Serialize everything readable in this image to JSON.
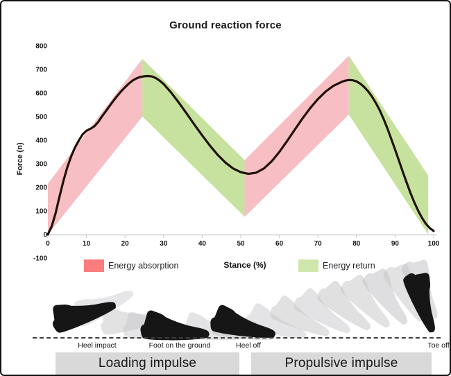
{
  "chart_data": {
    "type": "line",
    "title": "Ground reaction force",
    "xlabel": "Stance (%)",
    "ylabel": "Force (n)",
    "xlim": [
      0,
      100
    ],
    "ylim": [
      -100,
      800
    ],
    "grid": false,
    "x_ticks": [
      0,
      10,
      20,
      30,
      40,
      50,
      60,
      70,
      80,
      90,
      100
    ],
    "y_ticks": [
      800,
      700,
      600,
      500,
      400,
      300,
      200,
      100,
      0,
      -100
    ],
    "colors": {
      "absorption_band": "#f7bec3",
      "return_band": "#c7e29e",
      "curve": "#201109",
      "axis": "#d2d2d2",
      "tick": "#c7c7c7",
      "tick_text": "#141414",
      "legend_absorption": "#f97d7d",
      "legend_return": "#cfe7ad"
    },
    "bands": [
      {
        "name": "energy-absorption-band-1",
        "kind": "absorption_band",
        "points": [
          [
            0,
            0
          ],
          [
            0,
            215
          ],
          [
            24.5,
            745
          ],
          [
            24.5,
            500
          ]
        ]
      },
      {
        "name": "energy-return-band-1",
        "kind": "return_band",
        "points": [
          [
            24.5,
            500
          ],
          [
            24.5,
            745
          ],
          [
            51,
            315
          ],
          [
            51,
            75
          ]
        ]
      },
      {
        "name": "energy-absorption-band-2",
        "kind": "absorption_band",
        "points": [
          [
            51,
            75
          ],
          [
            51,
            315
          ],
          [
            78,
            758
          ],
          [
            78,
            508
          ]
        ]
      },
      {
        "name": "energy-return-band-2",
        "kind": "return_band",
        "points": [
          [
            78,
            508
          ],
          [
            78,
            758
          ],
          [
            98.6,
            250
          ],
          [
            98.6,
            0
          ]
        ]
      }
    ],
    "curve": {
      "name": "vertical-ground-reaction-force",
      "points": [
        [
          0,
          0
        ],
        [
          1,
          35
        ],
        [
          2,
          90
        ],
        [
          3,
          160
        ],
        [
          4,
          225
        ],
        [
          5,
          283
        ],
        [
          6,
          330
        ],
        [
          7,
          368
        ],
        [
          8,
          398
        ],
        [
          9,
          424
        ],
        [
          10,
          440
        ],
        [
          11,
          448
        ],
        [
          12,
          458
        ],
        [
          13,
          476
        ],
        [
          14,
          500
        ],
        [
          15,
          522
        ],
        [
          16,
          545
        ],
        [
          17,
          567
        ],
        [
          18,
          588
        ],
        [
          19,
          607
        ],
        [
          20,
          624
        ],
        [
          21,
          640
        ],
        [
          22,
          653
        ],
        [
          23,
          662
        ],
        [
          24,
          668
        ],
        [
          25,
          671
        ],
        [
          26,
          672
        ],
        [
          27,
          670
        ],
        [
          28,
          663
        ],
        [
          29,
          652
        ],
        [
          30,
          638
        ],
        [
          32,
          601
        ],
        [
          34,
          558
        ],
        [
          36,
          512
        ],
        [
          38,
          465
        ],
        [
          40,
          420
        ],
        [
          42,
          377
        ],
        [
          44,
          338
        ],
        [
          46,
          305
        ],
        [
          48,
          280
        ],
        [
          50,
          264
        ],
        [
          52,
          257
        ],
        [
          54,
          262
        ],
        [
          56,
          280
        ],
        [
          58,
          310
        ],
        [
          60,
          350
        ],
        [
          62,
          396
        ],
        [
          64,
          444
        ],
        [
          66,
          492
        ],
        [
          68,
          536
        ],
        [
          70,
          574
        ],
        [
          72,
          606
        ],
        [
          74,
          630
        ],
        [
          76,
          646
        ],
        [
          77,
          652
        ],
        [
          78,
          655
        ],
        [
          79,
          654
        ],
        [
          80,
          649
        ],
        [
          81,
          639
        ],
        [
          82,
          625
        ],
        [
          83,
          607
        ],
        [
          84,
          585
        ],
        [
          85,
          558
        ],
        [
          86,
          527
        ],
        [
          87,
          491
        ],
        [
          88,
          450
        ],
        [
          89,
          406
        ],
        [
          90,
          360
        ],
        [
          91,
          313
        ],
        [
          92,
          266
        ],
        [
          93,
          220
        ],
        [
          94,
          176
        ],
        [
          95,
          136
        ],
        [
          96,
          100
        ],
        [
          97,
          70
        ],
        [
          98,
          45
        ],
        [
          99,
          27
        ],
        [
          100,
          15
        ]
      ]
    },
    "legend": [
      {
        "label": "Energy absorption",
        "kind": "legend_absorption"
      },
      {
        "label": "Energy return",
        "kind": "legend_return"
      }
    ],
    "legend_position": "bottom"
  },
  "gait": {
    "phases": [
      {
        "label": "Heel impact"
      },
      {
        "label": "Foot on the ground"
      },
      {
        "label": "Heel off"
      },
      {
        "label": "Toe off"
      }
    ],
    "impulse_bars": [
      {
        "label": "Loading impulse"
      },
      {
        "label": "Propulsive impulse"
      }
    ],
    "colors": {
      "shoe_dark": "#161616",
      "shoe_ghost": "#c6c6c9",
      "bar_background": "#d9d9d9"
    }
  }
}
